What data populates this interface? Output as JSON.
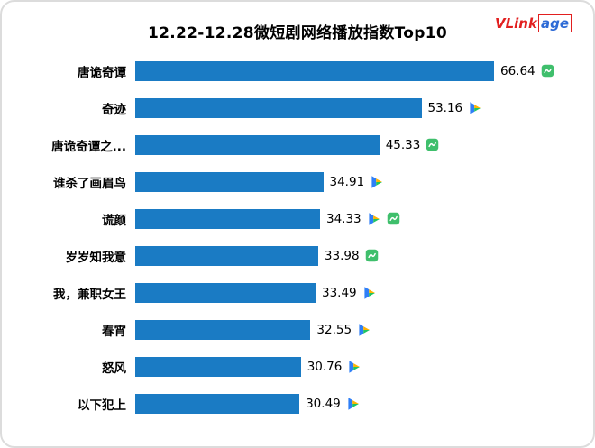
{
  "logo": {
    "left": "VLink",
    "right": "age"
  },
  "chart_data": {
    "type": "bar",
    "orientation": "horizontal",
    "title": "12.22-12.28微短剧网络播放指数Top10",
    "categories": [
      "唐诡奇谭",
      "奇迹",
      "唐诡奇谭之...",
      "谁杀了画眉鸟",
      "谎颜",
      "岁岁知我意",
      "我，兼职女王",
      "春宵",
      "怒风",
      "以下犯上"
    ],
    "values": [
      66.64,
      53.16,
      45.33,
      34.91,
      34.33,
      33.98,
      33.49,
      32.55,
      30.76,
      30.49
    ],
    "value_labels": [
      "66.64",
      "53.16",
      "45.33",
      "34.91",
      "34.33",
      "33.98",
      "33.49",
      "32.55",
      "30.76",
      "30.49"
    ],
    "platform_icons": [
      [
        "green"
      ],
      [
        "tencent"
      ],
      [
        "green"
      ],
      [
        "tencent"
      ],
      [
        "tencent",
        "green"
      ],
      [
        "green"
      ],
      [
        "tencent"
      ],
      [
        "tencent"
      ],
      [
        "tencent"
      ],
      [
        "tencent"
      ]
    ],
    "xlim": [
      0,
      70
    ],
    "bar_color": "#1a7bc4",
    "grid": false,
    "legend": null,
    "value_label_position": "end-of-bar"
  },
  "icon_colors": {
    "tencent_blue": "#2f7ff7",
    "tencent_orange": "#ffb302",
    "tencent_green": "#1fc462",
    "green_square": "#3fbf6c"
  }
}
